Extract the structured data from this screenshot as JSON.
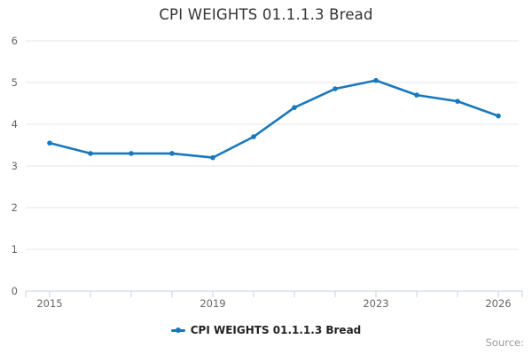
{
  "title": "CPI WEIGHTS 01.1.1.3 Bread",
  "legend": {
    "label": "CPI WEIGHTS 01.1.1.3 Bread"
  },
  "footer": {
    "source_label": "Source:"
  },
  "colors": {
    "line": "#1878bc",
    "grid": "#e6e6e6",
    "axis": "#c4d0e0",
    "tick_label": "#666666",
    "title": "#333333",
    "legend_text": "#222222",
    "source_text": "#999999",
    "background": "#ffffff"
  },
  "chart_data": {
    "type": "line",
    "title": "CPI WEIGHTS 01.1.1.3 Bread",
    "x": [
      2015,
      2016,
      2017,
      2018,
      2019,
      2020,
      2021,
      2022,
      2023,
      2024,
      2025,
      2026
    ],
    "series": [
      {
        "name": "CPI WEIGHTS 01.1.1.3 Bread",
        "values": [
          3.55,
          3.3,
          3.3,
          3.3,
          3.2,
          3.7,
          4.4,
          4.85,
          5.05,
          4.7,
          4.55,
          4.2
        ]
      }
    ],
    "xlabel": "",
    "ylabel": "",
    "ylim": [
      0,
      6
    ],
    "yticks": [
      0,
      1,
      2,
      3,
      4,
      5,
      6
    ],
    "xtick_labels": [
      "2015",
      "2019",
      "2023",
      "2026"
    ],
    "grid": "horizontal-only",
    "marker": "circle",
    "legend_position": "bottom",
    "source_note": "Source:"
  }
}
